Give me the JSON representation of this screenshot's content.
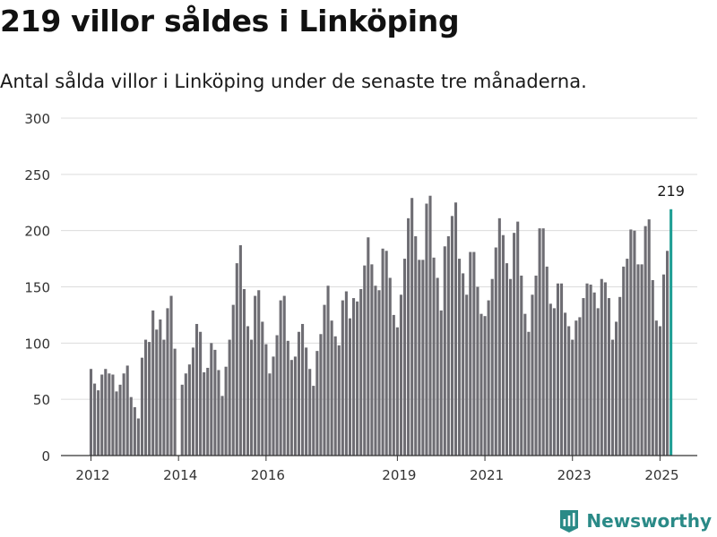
{
  "header": {
    "title": "219 villor såldes i Linköping",
    "subtitle": "Antal sålda villor i Linköping under de senaste tre månaderna."
  },
  "brand": {
    "name": "Newsworthy",
    "icon": "newsworthy-logo-icon"
  },
  "colors": {
    "bar": "#6e6d73",
    "highlight": "#1f9e94",
    "grid": "#dcdcdc",
    "brand": "#2a8a87"
  },
  "chart_data": {
    "type": "bar",
    "title": "",
    "xlabel": "",
    "ylabel": "",
    "ylim": [
      0,
      300
    ],
    "y_ticks": [
      0,
      50,
      100,
      150,
      200,
      250,
      300
    ],
    "x_tick_labels": [
      {
        "label": "2012",
        "index": 0
      },
      {
        "label": "2014",
        "index": 24
      },
      {
        "label": "2016",
        "index": 48
      },
      {
        "label": "2019",
        "index": 84
      },
      {
        "label": "2021",
        "index": 108
      },
      {
        "label": "2023",
        "index": 132
      },
      {
        "label": "2025",
        "index": 156
      }
    ],
    "grid": true,
    "highlight_last": true,
    "last_value_label": "219",
    "values": [
      77,
      64,
      58,
      72,
      77,
      73,
      72,
      57,
      63,
      73,
      80,
      52,
      43,
      33,
      87,
      103,
      101,
      129,
      112,
      121,
      103,
      131,
      142,
      95,
      0,
      63,
      73,
      81,
      96,
      117,
      110,
      74,
      78,
      100,
      94,
      76,
      53,
      79,
      103,
      134,
      171,
      187,
      148,
      115,
      103,
      142,
      147,
      119,
      99,
      73,
      88,
      107,
      138,
      142,
      102,
      85,
      88,
      110,
      117,
      96,
      77,
      62,
      93,
      108,
      134,
      151,
      120,
      106,
      98,
      138,
      146,
      122,
      140,
      137,
      148,
      169,
      194,
      170,
      151,
      147,
      184,
      182,
      158,
      125,
      114,
      143,
      175,
      211,
      229,
      195,
      174,
      174,
      224,
      231,
      176,
      158,
      129,
      186,
      195,
      213,
      225,
      175,
      162,
      143,
      181,
      181,
      150,
      126,
      124,
      138,
      157,
      185,
      211,
      196,
      171,
      157,
      198,
      208,
      160,
      126,
      110,
      143,
      160,
      202,
      202,
      168,
      135,
      131,
      153,
      153,
      127,
      115,
      103,
      120,
      123,
      140,
      153,
      152,
      145,
      131,
      157,
      154,
      140,
      103,
      119,
      141,
      168,
      175,
      201,
      200,
      170,
      170,
      204,
      210,
      156,
      120,
      115,
      161,
      182,
      219
    ]
  }
}
